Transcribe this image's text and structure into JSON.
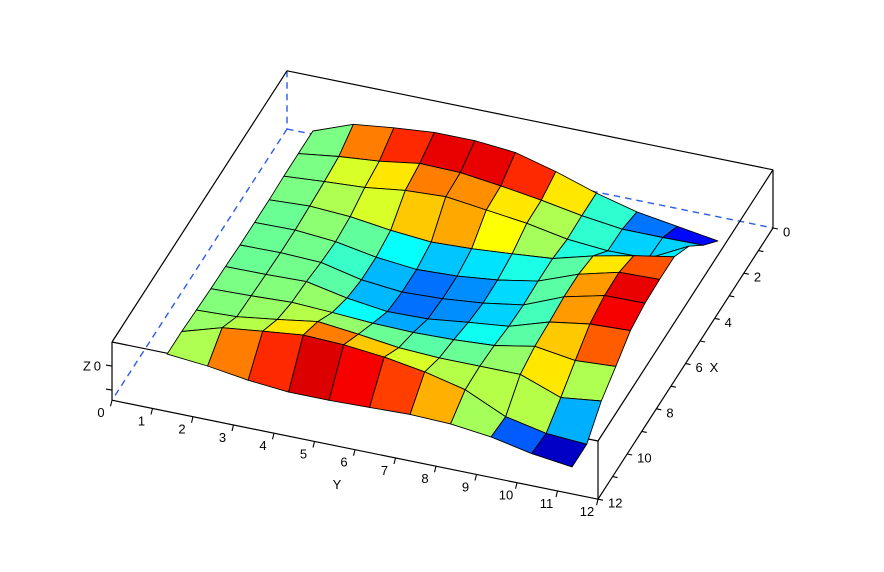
{
  "chart_data": {
    "type": "surface",
    "title": "",
    "x_axis": {
      "label": "X",
      "range": [
        0,
        12
      ],
      "tick_values": [
        0,
        1,
        2,
        3,
        4,
        5,
        6,
        7,
        8,
        9,
        10,
        11,
        12
      ],
      "labeled_ticks": [
        0,
        2,
        4,
        6,
        8,
        10,
        12
      ]
    },
    "y_axis": {
      "label": "Y",
      "range": [
        0,
        12
      ],
      "tick_values": [
        0,
        1,
        2,
        3,
        4,
        5,
        6,
        7,
        8,
        9,
        10,
        11,
        12
      ],
      "labeled_ticks": [
        0,
        1,
        2,
        3,
        4,
        5,
        6,
        7,
        8,
        9,
        10,
        11,
        12
      ]
    },
    "z_axis": {
      "label": "Z",
      "range": [
        -1.42,
        1.0
      ],
      "tick_values": [
        0,
        -1
      ],
      "tick_labels": [
        "0",
        ""
      ]
    },
    "grid_x": [
      1,
      2,
      3,
      4,
      5,
      6,
      7,
      8,
      9,
      10,
      11
    ],
    "grid_y": [
      1,
      2,
      3,
      4,
      5,
      6,
      7,
      8,
      9,
      10,
      11
    ],
    "z_values": [
      [
        -0.22,
        0.4,
        0.6,
        0.75,
        0.75,
        0.6,
        0.15,
        -0.4,
        -0.84,
        -1.1,
        -1.36
      ],
      [
        -0.22,
        0.0,
        0.15,
        0.4,
        0.36,
        0.15,
        -0.1,
        -0.4,
        -0.62,
        -0.62,
        -0.6
      ],
      [
        -0.22,
        -0.1,
        0.0,
        0.22,
        0.3,
        0.09,
        -0.12,
        -0.44,
        -0.58,
        -0.55,
        0.3
      ],
      [
        -0.26,
        -0.18,
        -0.28,
        -0.5,
        -0.65,
        -0.58,
        -0.45,
        -0.3,
        0.15,
        0.5,
        0.8
      ],
      [
        -0.26,
        -0.24,
        -0.38,
        -0.68,
        -0.85,
        -0.78,
        -0.6,
        -0.3,
        0.33,
        0.75,
        0.8
      ],
      [
        -0.26,
        -0.24,
        -0.3,
        -0.68,
        -0.85,
        -0.78,
        -0.62,
        -0.35,
        0.33,
        0.72,
        0.75
      ],
      [
        -0.22,
        -0.2,
        -0.16,
        -0.5,
        -0.72,
        -0.68,
        -0.48,
        -0.3,
        0.22,
        0.48,
        0.55
      ],
      [
        -0.2,
        -0.15,
        -0.08,
        -0.16,
        -0.26,
        -0.3,
        -0.26,
        -0.16,
        0.15,
        -0.1,
        0.0
      ],
      [
        -0.15,
        -0.08,
        0.15,
        0.4,
        0.22,
        0.0,
        -0.08,
        -0.08,
        -0.08,
        -0.7,
        -0.5
      ],
      [
        -0.1,
        0.4,
        0.6,
        0.78,
        0.72,
        0.55,
        0.28,
        -0.12,
        -0.9,
        -1.25,
        -1.36
      ],
      [
        -0.1,
        -0.25,
        -0.5,
        -0.65,
        -0.65,
        -0.6,
        -0.55,
        -0.6,
        -0.8,
        -1.15,
        -1.36
      ]
    ],
    "colormap": "jet",
    "color_domain": [
      -1.42,
      1.0
    ],
    "legend": null,
    "grid_on": false,
    "styles": {
      "background": "#ffffff",
      "mesh_line": "#000000",
      "box_edge": "#000000",
      "hidden_edge": "#2b5ce6",
      "label_color": "#000000"
    }
  }
}
